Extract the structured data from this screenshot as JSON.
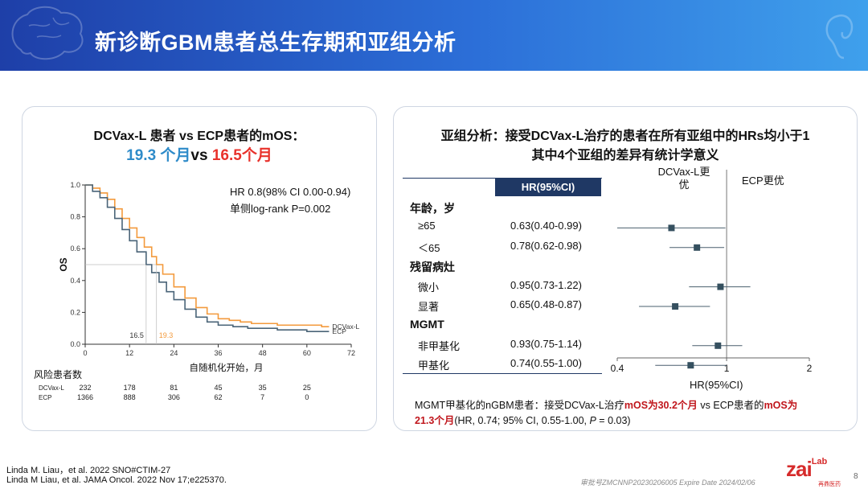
{
  "header": {
    "title": "新诊断GBM患者总生存期和亚组分析"
  },
  "left_panel": {
    "title_line1": "DCVax-L 患者 vs ECP患者的mOS：",
    "mos_dcvax": "19.3 个月",
    "vs_text": "vs",
    "mos_ecp": "16.5个月",
    "hr_text": "HR 0.8(98% CI 0.00-0.94)",
    "pvalue_text": "单侧log-rank P=0.002",
    "risk_title": "风险患者数",
    "colors": {
      "dcvax": "#f39a3c",
      "ecp": "#4a6478",
      "mos_dcvax": "#2e8bc9",
      "mos_ecp": "#e8312b"
    }
  },
  "right_panel": {
    "title_line1": "亚组分析：接受DCVax-L治疗的患者在所有亚组中的HRs均小于1",
    "title_line2": "其中4个亚组的差异有统计学意义",
    "table_header": "HR(95%CI)",
    "favors_left": "DCVax-L更优",
    "favors_right": "ECP更优",
    "axis_title": "HR(95%CI)",
    "rows": [
      {
        "label": "年龄，岁",
        "header": true,
        "hr": ""
      },
      {
        "label": "≥65",
        "header": false,
        "hr": "0.63(0.40-0.99)"
      },
      {
        "label": "＜65",
        "header": false,
        "hr": "0.78(0.62-0.98)"
      },
      {
        "label": "残留病灶",
        "header": true,
        "hr": ""
      },
      {
        "label": "微小",
        "header": false,
        "hr": "0.95(0.73-1.22)"
      },
      {
        "label": "显著",
        "header": false,
        "hr": "0.65(0.48-0.87)"
      },
      {
        "label": "MGMT",
        "header": true,
        "hr": ""
      },
      {
        "label": "非甲基化",
        "header": false,
        "hr": "0.93(0.75-1.14)"
      },
      {
        "label": "甲基化",
        "header": false,
        "hr": "0.74(0.55-1.00)"
      }
    ],
    "note_part1": "MGMT甲基化的nGBM患者：接受DCVax-L治疗",
    "note_mos1": "mOS为30.2个月",
    "note_vs": " vs ",
    "note_part2": "ECP患者的",
    "note_mos2": "mOS为",
    "note_mos2b": "21.3个月",
    "note_tail1": "(HR, 0.74; 95% CI, 0.55-1.00, ",
    "note_p": "P",
    "note_tail2": " = 0.03)"
  },
  "footer": {
    "ref1": "Linda M. Liau，et al. 2022 SNO#CTIM-27",
    "ref2": "Linda M Liau, et al. JAMA Oncol. 2022 Nov 17;e225370.",
    "approval": "审批号ZMCNNP20230206005 Expire Date 2024/02/06",
    "logo": "zai",
    "logo_sup": "Lab",
    "logo_sub": "再鼎医药",
    "page": "8"
  },
  "chart_data": [
    {
      "type": "line",
      "title": "",
      "xlabel": "自随机化开始，月",
      "ylabel": "OS",
      "xlim": [
        0,
        72
      ],
      "ylim": [
        0,
        1.0
      ],
      "x_ticks": [
        0,
        12,
        24,
        36,
        48,
        60,
        72
      ],
      "y_ticks": [
        0,
        0.2,
        0.4,
        0.6,
        0.8,
        1.0
      ],
      "series": [
        {
          "name": "DCVax-L",
          "color": "#f39a3c",
          "points": [
            [
              0,
              1.0
            ],
            [
              2,
              0.98
            ],
            [
              4,
              0.95
            ],
            [
              6,
              0.91
            ],
            [
              8,
              0.85
            ],
            [
              10,
              0.79
            ],
            [
              12,
              0.73
            ],
            [
              14,
              0.67
            ],
            [
              16,
              0.61
            ],
            [
              18,
              0.55
            ],
            [
              19.3,
              0.5
            ],
            [
              21,
              0.44
            ],
            [
              24,
              0.36
            ],
            [
              27,
              0.29
            ],
            [
              30,
              0.23
            ],
            [
              33,
              0.19
            ],
            [
              36,
              0.16
            ],
            [
              39,
              0.15
            ],
            [
              42,
              0.14
            ],
            [
              45,
              0.13
            ],
            [
              48,
              0.13
            ],
            [
              52,
              0.12
            ],
            [
              56,
              0.12
            ],
            [
              60,
              0.12
            ],
            [
              64,
              0.11
            ],
            [
              66,
              0.11
            ]
          ]
        },
        {
          "name": "ECP",
          "color": "#4a6478",
          "points": [
            [
              0,
              1.0
            ],
            [
              2,
              0.96
            ],
            [
              4,
              0.92
            ],
            [
              6,
              0.86
            ],
            [
              8,
              0.79
            ],
            [
              10,
              0.72
            ],
            [
              12,
              0.65
            ],
            [
              14,
              0.58
            ],
            [
              16.5,
              0.5
            ],
            [
              18,
              0.45
            ],
            [
              20,
              0.39
            ],
            [
              22,
              0.33
            ],
            [
              24,
              0.28
            ],
            [
              27,
              0.22
            ],
            [
              30,
              0.17
            ],
            [
              33,
              0.14
            ],
            [
              36,
              0.12
            ],
            [
              40,
              0.11
            ],
            [
              44,
              0.1
            ],
            [
              48,
              0.1
            ],
            [
              52,
              0.09
            ],
            [
              56,
              0.09
            ],
            [
              60,
              0.08
            ],
            [
              64,
              0.08
            ],
            [
              66,
              0.08
            ]
          ]
        }
      ],
      "annotations": [
        {
          "text": "16.5",
          "x": 16.5
        },
        {
          "text": "19.3",
          "x": 19.3
        },
        {
          "text": "DCVax-L",
          "series": "DCVax-L"
        },
        {
          "text": "ECP",
          "series": "ECP"
        }
      ],
      "risk_table": {
        "title": "风险患者数",
        "rows": [
          {
            "label": "DCVax-L",
            "values": [
              232,
              178,
              81,
              45,
              35,
              25
            ]
          },
          {
            "label": "ECP",
            "values": [
              1366,
              888,
              306,
              62,
              7,
              0
            ]
          }
        ],
        "times": [
          0,
          12,
          24,
          36,
          48,
          60
        ]
      }
    },
    {
      "type": "scatter",
      "subtype": "forest",
      "xlabel": "HR(95%CI)",
      "x_scale": "log",
      "xlim": [
        0.4,
        2
      ],
      "x_ticks": [
        0.4,
        1,
        2
      ],
      "reference_line": 1,
      "subgroups": [
        {
          "label": "≥65",
          "hr": 0.63,
          "lower": 0.4,
          "upper": 0.99
        },
        {
          "label": "＜65",
          "hr": 0.78,
          "lower": 0.62,
          "upper": 0.98
        },
        {
          "label": "微小",
          "hr": 0.95,
          "lower": 0.73,
          "upper": 1.22
        },
        {
          "label": "显著",
          "hr": 0.65,
          "lower": 0.48,
          "upper": 0.87
        },
        {
          "label": "非甲基化",
          "hr": 0.93,
          "lower": 0.75,
          "upper": 1.14
        },
        {
          "label": "甲基化",
          "hr": 0.74,
          "lower": 0.55,
          "upper": 1.0
        }
      ],
      "color": "#35505f"
    }
  ]
}
